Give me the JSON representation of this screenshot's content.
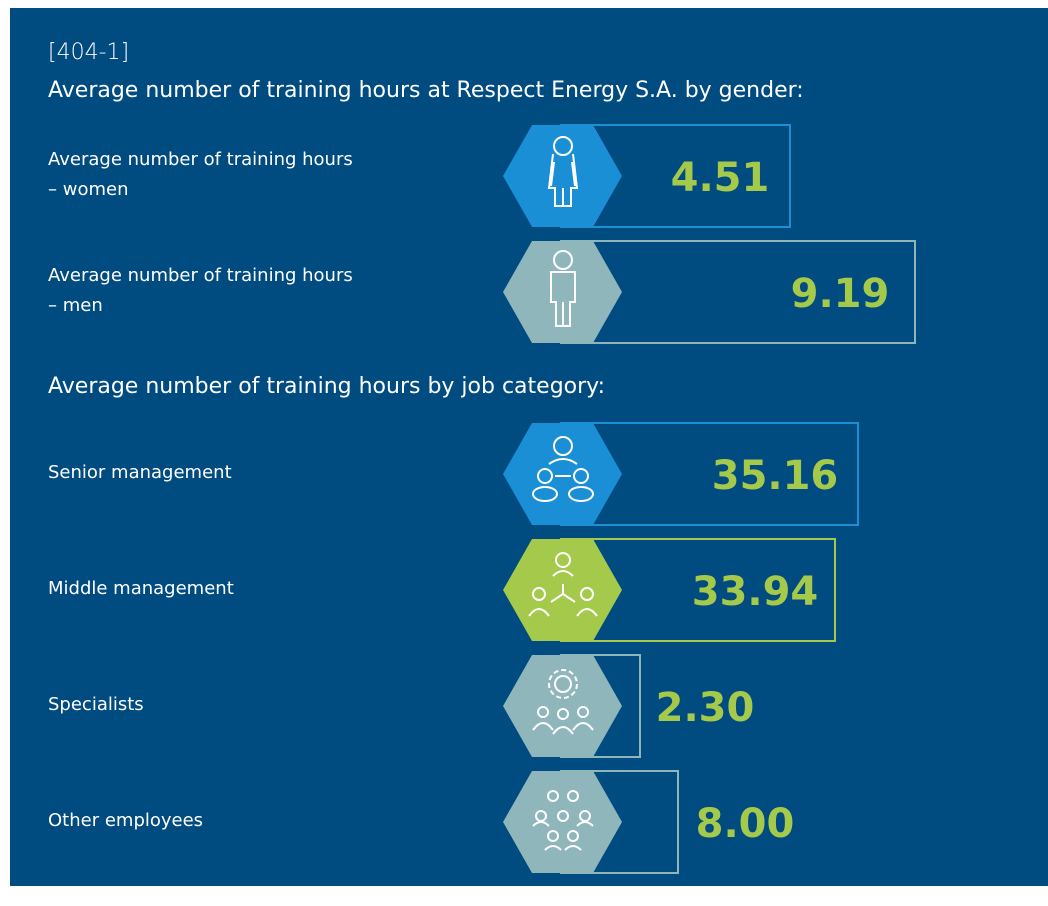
{
  "code": "[404-1]",
  "gender": {
    "title": "Average number of training hours at Respect Energy S.A. by gender:",
    "items": [
      {
        "label": "Average number of training hours – women",
        "value": "4.51"
      },
      {
        "label": "Average number of training hours – men",
        "value": "9.19"
      }
    ]
  },
  "job": {
    "title": "Average number of training hours by job category:",
    "items": [
      {
        "label": "Senior management",
        "value": "35.16"
      },
      {
        "label": "Middle management",
        "value": "33.94"
      },
      {
        "label": "Specialists",
        "value": "2.30"
      },
      {
        "label": "Other employees",
        "value": "8.00"
      }
    ]
  }
}
